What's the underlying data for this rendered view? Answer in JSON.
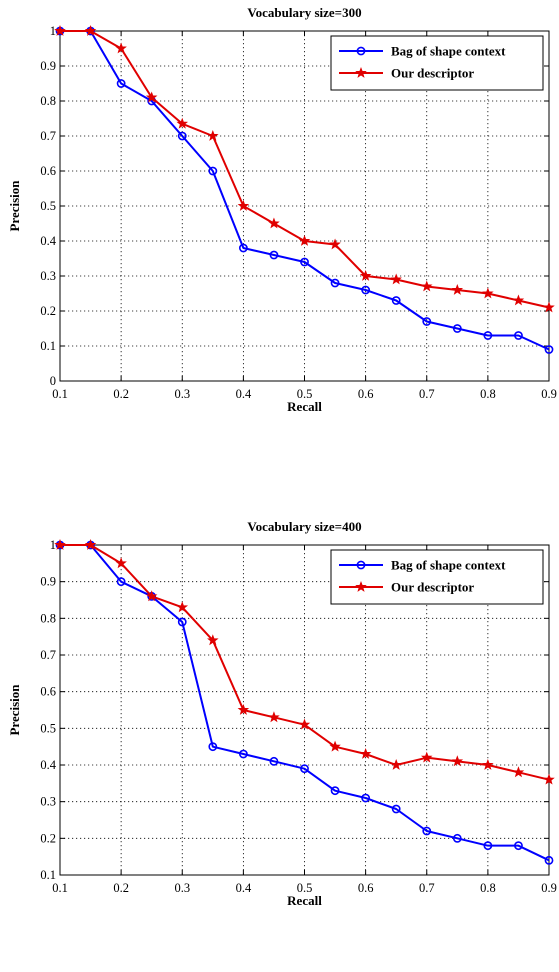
{
  "chart_data": [
    {
      "type": "line",
      "title": "Vocabulary size=300",
      "xlabel": "Recall",
      "ylabel": "Precision",
      "xlim": [
        0.1,
        0.9
      ],
      "ylim": [
        0,
        1
      ],
      "x_ticks": [
        "0.1",
        "0.2",
        "0.3",
        "0.4",
        "0.5",
        "0.6",
        "0.7",
        "0.8",
        "0.9"
      ],
      "y_ticks": [
        "0",
        "0.1",
        "0.2",
        "0.3",
        "0.4",
        "0.5",
        "0.6",
        "0.7",
        "0.8",
        "0.9",
        "1"
      ],
      "grid": true,
      "legend_position": "top-right",
      "x": [
        0.1,
        0.15,
        0.2,
        0.25,
        0.3,
        0.35,
        0.4,
        0.45,
        0.5,
        0.55,
        0.6,
        0.65,
        0.7,
        0.75,
        0.8,
        0.85,
        0.9
      ],
      "series": [
        {
          "name": "Bag of shape context",
          "color": "#0000ff",
          "marker": "circle",
          "values": [
            1.0,
            1.0,
            0.85,
            0.8,
            0.7,
            0.6,
            0.38,
            0.36,
            0.34,
            0.28,
            0.26,
            0.23,
            0.17,
            0.15,
            0.13,
            0.13,
            0.09
          ]
        },
        {
          "name": "Our descriptor",
          "color": "#e00000",
          "marker": "star",
          "values": [
            1.0,
            1.0,
            0.95,
            0.81,
            0.735,
            0.7,
            0.5,
            0.45,
            0.4,
            0.39,
            0.3,
            0.29,
            0.27,
            0.26,
            0.25,
            0.23,
            0.21
          ]
        }
      ]
    },
    {
      "type": "line",
      "title": "Vocabulary size=400",
      "xlabel": "Recall",
      "ylabel": "Precision",
      "xlim": [
        0.1,
        0.9
      ],
      "ylim": [
        0.1,
        1
      ],
      "x_ticks": [
        "0.1",
        "0.2",
        "0.3",
        "0.4",
        "0.5",
        "0.6",
        "0.7",
        "0.8",
        "0.9"
      ],
      "y_ticks": [
        "0.1",
        "0.2",
        "0.3",
        "0.4",
        "0.5",
        "0.6",
        "0.7",
        "0.8",
        "0.9",
        "1"
      ],
      "grid": true,
      "legend_position": "top-right",
      "x": [
        0.1,
        0.15,
        0.2,
        0.25,
        0.3,
        0.35,
        0.4,
        0.45,
        0.5,
        0.55,
        0.6,
        0.65,
        0.7,
        0.75,
        0.8,
        0.85,
        0.9
      ],
      "series": [
        {
          "name": "Bag of shape context",
          "color": "#0000ff",
          "marker": "circle",
          "values": [
            1.0,
            1.0,
            0.9,
            0.86,
            0.79,
            0.45,
            0.43,
            0.41,
            0.39,
            0.33,
            0.31,
            0.28,
            0.22,
            0.2,
            0.18,
            0.18,
            0.14
          ]
        },
        {
          "name": "Our descriptor",
          "color": "#e00000",
          "marker": "star",
          "values": [
            1.0,
            1.0,
            0.95,
            0.86,
            0.83,
            0.74,
            0.55,
            0.53,
            0.51,
            0.45,
            0.43,
            0.4,
            0.42,
            0.41,
            0.4,
            0.38,
            0.36
          ]
        }
      ]
    }
  ]
}
